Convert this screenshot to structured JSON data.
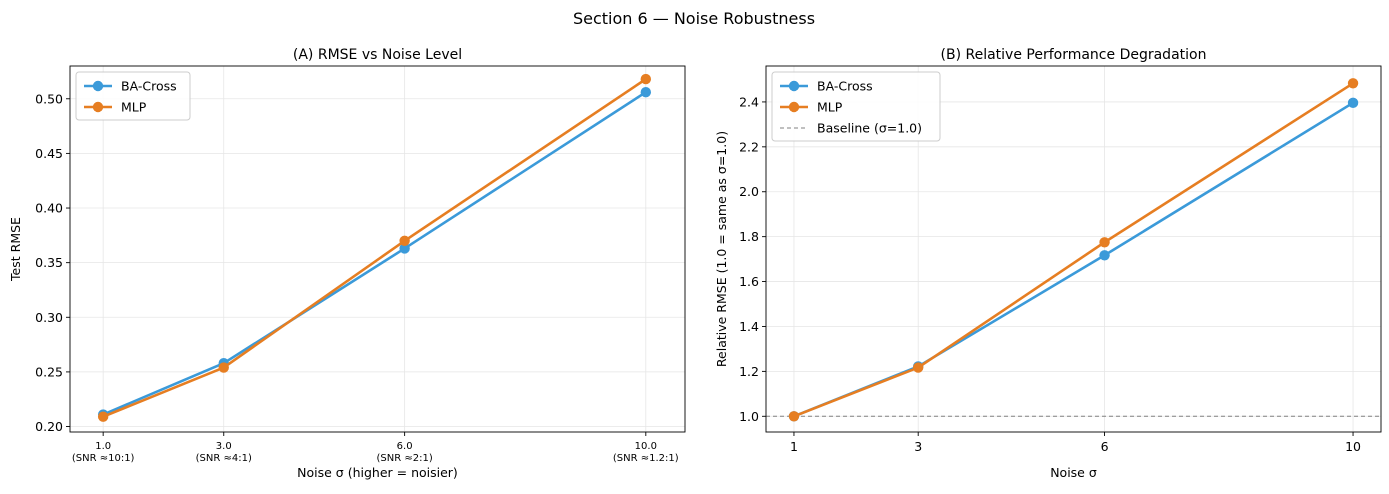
{
  "suptitle": "Section 6 — Noise Robustness",
  "colors": {
    "ba_cross": "#3b9ad9",
    "mlp": "#e67e22",
    "baseline": "#808080",
    "grid": "#e6e6e6"
  },
  "chart_data": [
    {
      "type": "line",
      "title": "(A) RMSE vs Noise Level",
      "xlabel": "Noise σ  (higher = noisier)",
      "ylabel": "Test RMSE",
      "x": [
        1.0,
        3.0,
        6.0,
        10.0
      ],
      "xtick_labels": [
        [
          "1.0",
          "(SNR ≈10:1)"
        ],
        [
          "3.0",
          "(SNR ≈4:1)"
        ],
        [
          "6.0",
          "(SNR ≈2:1)"
        ],
        [
          "10.0",
          "(SNR ≈1.2:1)"
        ]
      ],
      "yticks": [
        0.2,
        0.25,
        0.3,
        0.35,
        0.4,
        0.45,
        0.5
      ],
      "ytick_labels": [
        "0.20",
        "0.25",
        "0.30",
        "0.35",
        "0.40",
        "0.45",
        "0.50"
      ],
      "xlim": [
        0.45,
        10.65
      ],
      "ylim": [
        0.195,
        0.53
      ],
      "grid": true,
      "legend": "upper-left",
      "series": [
        {
          "name": "BA-Cross",
          "color": "#3b9ad9",
          "values": [
            0.211,
            0.258,
            0.363,
            0.506
          ]
        },
        {
          "name": "MLP",
          "color": "#e67e22",
          "values": [
            0.209,
            0.254,
            0.37,
            0.518
          ]
        }
      ]
    },
    {
      "type": "line",
      "title": "(B) Relative Performance Degradation",
      "xlabel": "Noise σ",
      "ylabel": "Relative RMSE  (1.0 = same as σ=1.0)",
      "x": [
        1,
        3,
        6,
        10
      ],
      "xtick_labels": [
        [
          "1"
        ],
        [
          "3"
        ],
        [
          "6"
        ],
        [
          "10"
        ]
      ],
      "yticks": [
        1.0,
        1.2,
        1.4,
        1.6,
        1.8,
        2.0,
        2.2,
        2.4
      ],
      "ytick_labels": [
        "1.0",
        "1.2",
        "1.4",
        "1.6",
        "1.8",
        "2.0",
        "2.2",
        "2.4"
      ],
      "xlim": [
        0.55,
        10.45
      ],
      "ylim": [
        0.93,
        2.56
      ],
      "grid": true,
      "legend": "upper-left",
      "baseline": {
        "name": "Baseline (σ=1.0)",
        "y": 1.0
      },
      "series": [
        {
          "name": "BA-Cross",
          "color": "#3b9ad9",
          "values": [
            1.0,
            1.222,
            1.717,
            2.396
          ]
        },
        {
          "name": "MLP",
          "color": "#e67e22",
          "values": [
            1.0,
            1.217,
            1.775,
            2.483
          ]
        }
      ]
    }
  ]
}
